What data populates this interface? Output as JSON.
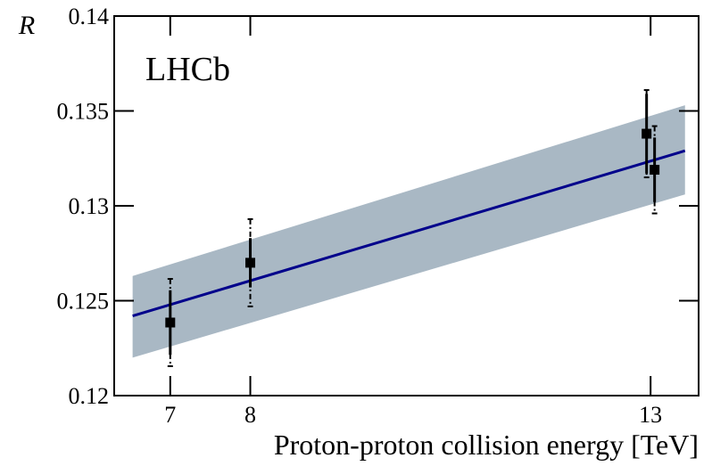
{
  "chart_data": {
    "type": "scatter",
    "y_label": "R",
    "x_label": "Proton-proton collision energy [TeV]",
    "annotation": "LHCb",
    "xlim": [
      6.3,
      13.6
    ],
    "ylim": [
      0.12,
      0.14
    ],
    "xticks": [
      7,
      8,
      13
    ],
    "yticks": [
      0.12,
      0.125,
      0.13,
      0.135,
      0.14
    ],
    "series": [
      {
        "color": "#000000",
        "x": [
          7,
          8,
          12.95,
          13.05
        ],
        "values": [
          0.12385,
          0.127,
          0.1338,
          0.1319
        ],
        "stat_errors": [
          0.0017,
          0.0013,
          0.0021,
          0.0017
        ],
        "total_errors": [
          0.0023,
          0.0023,
          0.0023,
          0.0023
        ]
      }
    ],
    "fit": {
      "color": "#00008b",
      "band_color": "#a9b8c4",
      "x": [
        6.53,
        13.43
      ],
      "values": [
        0.1242,
        0.1329
      ],
      "upper": [
        0.1263,
        0.1353
      ],
      "lower": [
        0.122,
        0.1306
      ]
    }
  }
}
